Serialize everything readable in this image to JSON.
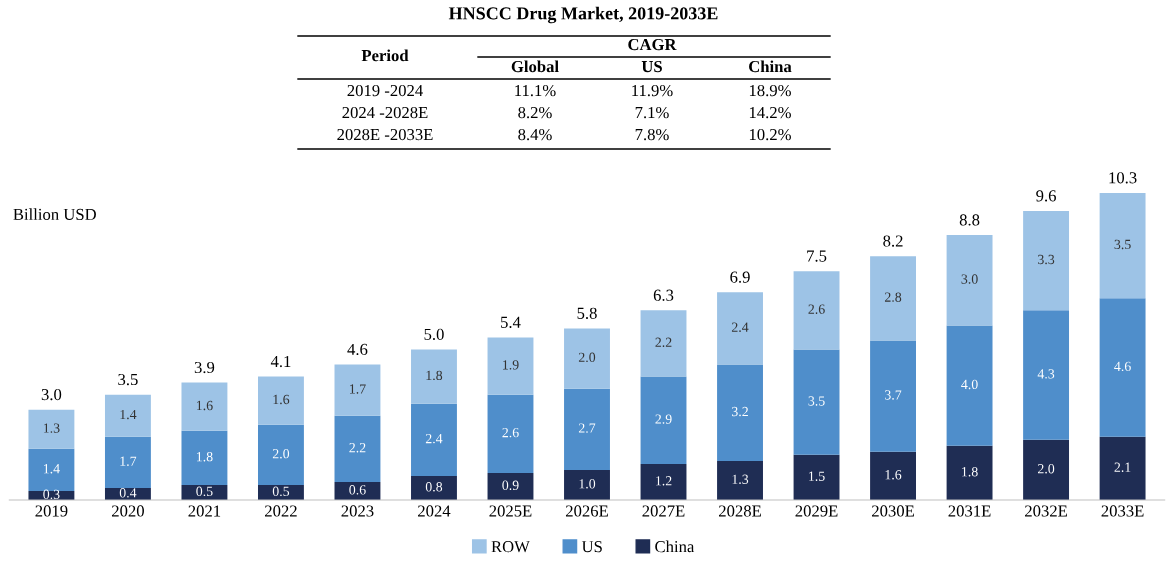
{
  "chart_data": {
    "type": "bar",
    "title": "HNSCC Drug Market, 2019-2033E",
    "ylabel": "Billion USD",
    "categories": [
      "2019",
      "2020",
      "2021",
      "2022",
      "2023",
      "2024",
      "2025E",
      "2026E",
      "2027E",
      "2028E",
      "2029E",
      "2030E",
      "2031E",
      "2032E",
      "2033E"
    ],
    "stacked": true,
    "data_labels": true,
    "legend": "bottom",
    "grid": false,
    "tick_labels": "x",
    "series": [
      {
        "name": "China",
        "color": "#1f2d54",
        "values": [
          0.3,
          0.4,
          0.5,
          0.5,
          0.6,
          0.8,
          0.9,
          1.0,
          1.2,
          1.3,
          1.5,
          1.6,
          1.8,
          2.0,
          2.1
        ],
        "value_labels": [
          "0.3",
          "0.4",
          "0.5",
          "0.5",
          "0.6",
          "0.8",
          "0.9",
          "1.0",
          "1.2",
          "1.3",
          "1.5",
          "1.6",
          "1.8",
          "2.0",
          "2.1"
        ]
      },
      {
        "name": "US",
        "color": "#4f8ecb",
        "values": [
          1.4,
          1.7,
          1.8,
          2.0,
          2.2,
          2.4,
          2.6,
          2.7,
          2.9,
          3.2,
          3.5,
          3.7,
          4.0,
          4.3,
          4.6
        ],
        "value_labels": [
          "1.4",
          "1.7",
          "1.8",
          "2.0",
          "2.2",
          "2.4",
          "2.6",
          "2.7",
          "2.9",
          "3.2",
          "3.5",
          "3.7",
          "4.0",
          "4.3",
          "4.6"
        ]
      },
      {
        "name": "ROW",
        "color": "#9dc3e6",
        "values": [
          1.3,
          1.4,
          1.6,
          1.6,
          1.7,
          1.8,
          1.9,
          2.0,
          2.2,
          2.4,
          2.6,
          2.8,
          3.0,
          3.3,
          3.5
        ],
        "value_labels": [
          "1.3",
          "1.4",
          "1.6",
          "1.6",
          "1.7",
          "1.8",
          "1.9",
          "2.0",
          "2.2",
          "2.4",
          "2.6",
          "2.8",
          "3.0",
          "3.3",
          "3.5"
        ]
      }
    ],
    "totals": [
      "3.0",
      "3.5",
      "3.9",
      "4.1",
      "4.6",
      "5.0",
      "5.4",
      "5.8",
      "6.3",
      "6.9",
      "7.5",
      "8.2",
      "8.8",
      "9.6",
      "10.3"
    ],
    "annotations": [
      "Period",
      "CAGR",
      "Global",
      "US",
      "China",
      "2019 -2024",
      "11.1%",
      "11.9%",
      "18.9%",
      "2024 -2028E",
      "8.2%",
      "7.1%",
      "14.2%",
      "2028E -2033E",
      "8.4%",
      "7.8%",
      "10.2%"
    ]
  }
}
